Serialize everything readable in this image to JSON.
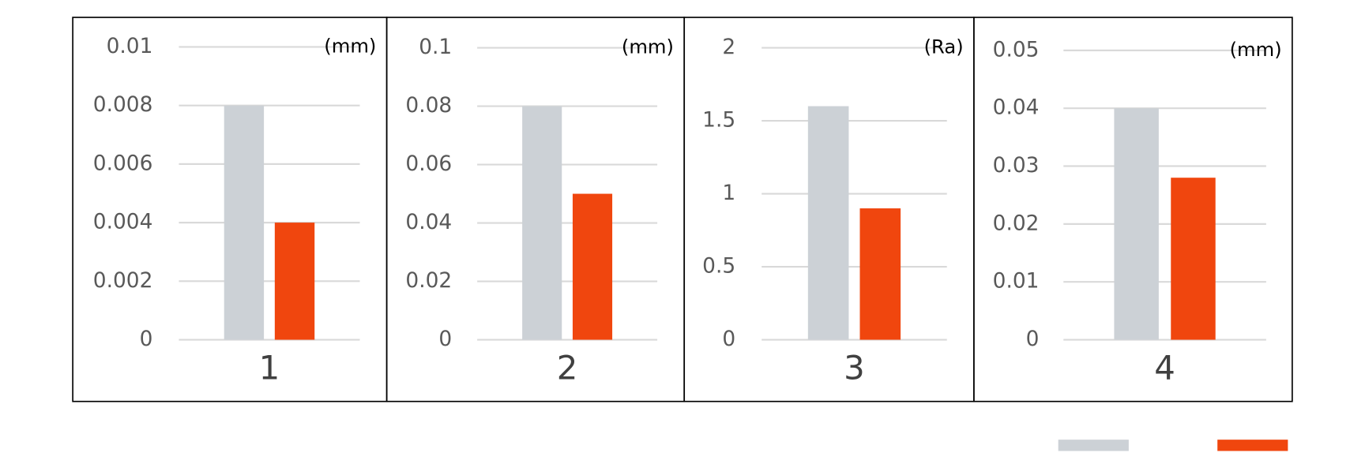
{
  "chart_data": [
    {
      "type": "bar",
      "unit": "(mm)",
      "categories": [
        "1"
      ],
      "series": [
        {
          "color": "#ccd1d6",
          "values": [
            0.008
          ]
        },
        {
          "color": "#f0460e",
          "values": [
            0.004
          ]
        }
      ],
      "ylim": [
        0,
        0.01
      ],
      "yticks": [
        0,
        0.002,
        0.004,
        0.006,
        0.008,
        0.01
      ],
      "grid": true
    },
    {
      "type": "bar",
      "unit": "(mm)",
      "categories": [
        "2"
      ],
      "series": [
        {
          "color": "#ccd1d6",
          "values": [
            0.08
          ]
        },
        {
          "color": "#f0460e",
          "values": [
            0.05
          ]
        }
      ],
      "ylim": [
        0,
        0.1
      ],
      "yticks": [
        0,
        0.02,
        0.04,
        0.06,
        0.08,
        0.1
      ],
      "grid": true
    },
    {
      "type": "bar",
      "unit": "(Ra)",
      "categories": [
        "3"
      ],
      "series": [
        {
          "color": "#ccd1d6",
          "values": [
            1.6
          ]
        },
        {
          "color": "#f0460e",
          "values": [
            0.9
          ]
        }
      ],
      "ylim": [
        0,
        2
      ],
      "yticks": [
        0,
        0.5,
        1,
        1.5,
        2
      ],
      "grid": true
    },
    {
      "type": "bar",
      "unit": "(mm)",
      "categories": [
        "4"
      ],
      "series": [
        {
          "color": "#ccd1d6",
          "values": [
            0.04
          ]
        },
        {
          "color": "#f0460e",
          "values": [
            0.028
          ]
        }
      ],
      "ylim": [
        0,
        0.05
      ],
      "yticks": [
        0,
        0.01,
        0.02,
        0.03,
        0.04,
        0.05
      ],
      "grid": true
    }
  ]
}
